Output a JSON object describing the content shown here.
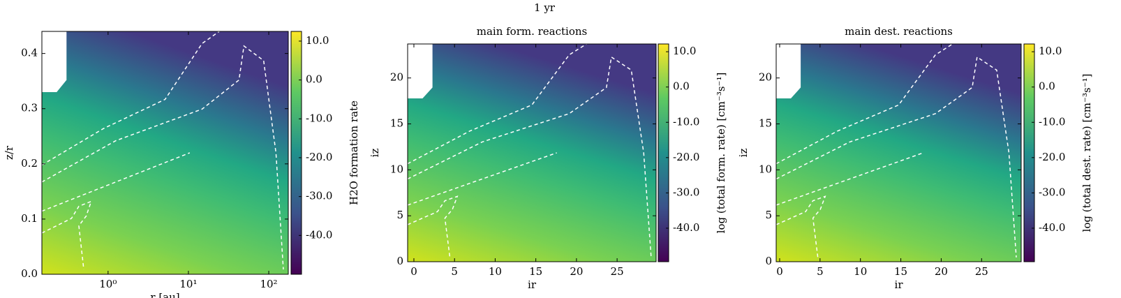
{
  "title": "1 yr",
  "chart_data": [
    {
      "type": "heatmap",
      "xlabel": "r [au]",
      "ylabel": "z/r",
      "xscale": "log",
      "xlim": [
        0.15,
        175
      ],
      "xticks": [
        {
          "value": 1,
          "label": "10⁰"
        },
        {
          "value": 10,
          "label": "10¹"
        },
        {
          "value": 100,
          "label": "10²"
        }
      ],
      "ylim": [
        0,
        0.44
      ],
      "yticks": [
        {
          "value": 0,
          "label": "0.0"
        },
        0.1,
        0.2,
        0.3,
        0.4
      ],
      "colorbar_label": "H2O formation rate",
      "clim": [
        -50,
        12.5
      ],
      "cticks": [
        {
          "value": 10,
          "label": "10.0"
        },
        {
          "value": 0,
          "label": "0.0"
        },
        {
          "value": -10,
          "label": "-10.0"
        },
        {
          "value": -20,
          "label": "-20.0"
        },
        {
          "value": -30,
          "label": "-30.0"
        },
        {
          "value": -40,
          "label": "-40.0"
        }
      ]
    },
    {
      "type": "heatmap",
      "title": "main form. reactions",
      "xlabel": "ir",
      "ylabel": "iz",
      "xlim": [
        -0.77,
        29.8
      ],
      "xticks": [
        0,
        5,
        10,
        15,
        20,
        25
      ],
      "ylim": [
        0,
        23.7
      ],
      "yticks": [
        0,
        5,
        10,
        15,
        20
      ],
      "colorbar_label": "log (total form. rate) [cm⁻³s⁻¹]",
      "clim": [
        -49.5,
        12.2
      ],
      "cticks": [
        {
          "value": 10,
          "label": "10.0"
        },
        {
          "value": 0,
          "label": "0.0"
        },
        {
          "value": -10,
          "label": "-10.0"
        },
        {
          "value": -20,
          "label": "-20.0"
        },
        {
          "value": -30,
          "label": "-30.0"
        },
        {
          "value": -40,
          "label": "-40.0"
        }
      ]
    },
    {
      "type": "heatmap",
      "title": "main dest. reactions",
      "xlabel": "ir",
      "ylabel": "iz",
      "xlim": [
        -0.43,
        29.9
      ],
      "xticks": [
        0,
        5,
        10,
        15,
        20,
        25
      ],
      "ylim": [
        0,
        23.7
      ],
      "yticks": [
        0,
        5,
        10,
        15,
        20
      ],
      "colorbar_label": "log (total dest. rate) [cm⁻³s⁻¹]",
      "clim": [
        -49.5,
        12.2
      ],
      "cticks": [
        {
          "value": 10,
          "label": "10.0"
        },
        {
          "value": 0,
          "label": "0.0"
        },
        {
          "value": -10,
          "label": "-10.0"
        },
        {
          "value": -20,
          "label": "-20.0"
        },
        {
          "value": -30,
          "label": "-30.0"
        },
        {
          "value": -40,
          "label": "-40.0"
        }
      ]
    }
  ]
}
